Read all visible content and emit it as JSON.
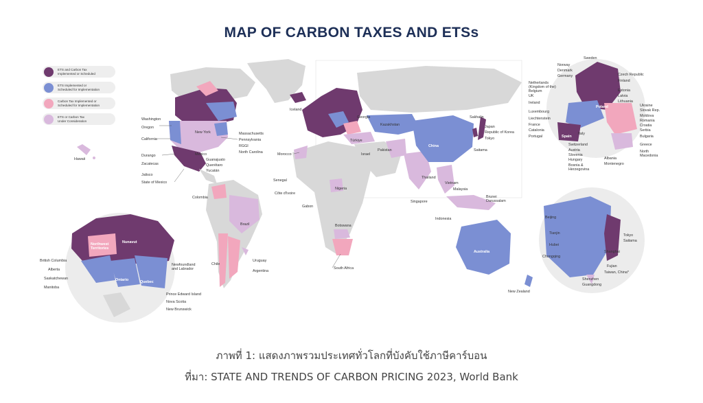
{
  "title": "MAP OF CARBON TAXES AND ETSs",
  "colors": {
    "ets_and_tax": "#6f3a6e",
    "ets": "#7b8fd3",
    "tax": "#f2a7bd",
    "under_consideration": "#d9b9dd",
    "none": "#d8d8d8"
  },
  "legend": [
    {
      "key": "ets_and_tax",
      "label": "ETS and Carbon Tax\nImplemented or Scheduled"
    },
    {
      "key": "ets",
      "label": "ETS Implemented or\nScheduled for Implementation"
    },
    {
      "key": "tax",
      "label": "Carbon Tax Implemented or\nScheduled for Implementation"
    },
    {
      "key": "under_consideration",
      "label": "ETS or Carbon Tax\nUnder Consideration"
    }
  ],
  "labels": {
    "hawaii": "Hawaii",
    "washington": "Washington",
    "oregon": "Oregon",
    "california": "California",
    "new_york": "New York",
    "massachusetts": "Massachusetts",
    "pennsylvania": "Pennsylvania",
    "rggi": "RGGI",
    "north_carolina": "North Carolina",
    "durango": "Durango",
    "zacatecas": "Zacatecas",
    "jalisco": "Jalisco",
    "state_of_mexico": "State of Mexico",
    "mexico": "Mexico",
    "guanajuato": "Guanajuato",
    "queretaro": "Querétaro",
    "yucatan": "Yucatán",
    "colombia": "Colombia",
    "brazil": "Brazil",
    "chile": "Chile",
    "uruguay": "Uruguay",
    "argentina": "Argentina",
    "iceland": "Iceland",
    "morocco": "Morocco",
    "senegal": "Senegal",
    "cote_divoire": "Côte d'Ivoire",
    "gabon": "Gabon",
    "nigeria": "Nigeria",
    "botswana": "Botswana",
    "south_africa": "South Africa",
    "georgia": "Georgia",
    "kazakhstan": "Kazakhstan",
    "turkiye": "Türkiye",
    "israel": "Israel",
    "pakistan": "Pakistan",
    "china": "China",
    "sakhalin": "Sakhalin",
    "japan": "Japan",
    "republic_of_korea": "Republic of Korea",
    "tokyo": "Tokyo",
    "saitama": "Saitama",
    "thailand": "Thailand",
    "vietnam": "Vietnam",
    "malaysia": "Malaysia",
    "singapore": "Singapore",
    "brunei": "Brunei\nDarussalam",
    "indonesia": "Indonesia",
    "australia": "Australia",
    "new_zealand": "New Zealand",
    "northwest_territories": "Northwest\nTerritories",
    "nunavut": "Nunavut",
    "british_columbia": "British Columbia",
    "alberta": "Alberta",
    "saskatchewan": "Saskatchewan",
    "manitoba": "Manitoba",
    "ontario": "Ontario",
    "quebec": "Quebec",
    "newfoundland": "Newfoundland\nand Labrador",
    "prince_edward_island": "Prince Edward Island",
    "nova_scotia": "Nova Scotia",
    "new_brunswick": "New Brunswick",
    "beijing": "Beijing",
    "tianjin": "Tianjin",
    "hubei": "Hubei",
    "chongqing": "Chongqing",
    "shanghai": "Shanghai",
    "fujian": "Fujian",
    "taiwan": "Taiwan, China*",
    "shenzhen": "Shenzhen",
    "guangdong": "Guangdong",
    "tokyo_inset": "Tokyo",
    "saitama_inset": "Saitama",
    "sweden": "Sweden",
    "norway": "Norway",
    "denmark": "Denmark",
    "germany": "Germany",
    "netherlands": "Netherlands\n(Kingdom of the)",
    "belgium": "Belgium",
    "uk": "UK",
    "ireland": "Ireland",
    "luxembourg": "Luxembourg",
    "liechtenstein": "Liechtenstein",
    "france": "France",
    "catalonia": "Catalonia",
    "portugal": "Portugal",
    "spain": "Spain",
    "switzerland": "Switzerland",
    "italy": "Italy",
    "austria": "Austria",
    "slovenia": "Slovenia",
    "hungary": "Hungary",
    "bosnia": "Bosnia &\nHerzegovina",
    "albania": "Albania",
    "montenegro": "Montenegro",
    "czech": "Czech Republic",
    "finland": "Finland",
    "estonia": "Estonia",
    "latvia": "Latvia",
    "lithuania": "Lithuania",
    "poland": "Poland",
    "ukraine": "Ukraine",
    "slovak": "Slovak Rep.",
    "moldova": "Moldova",
    "romania": "Romania",
    "croatia": "Croatia",
    "serbia": "Serbia",
    "bulgaria": "Bulgaria",
    "greece": "Greece",
    "north_macedonia": "North\nMacedonia"
  },
  "caption": {
    "line1": "ภาพที่ 1: แสดงภาพรวมประเทศทั่วโลกที่บังคับใช้ภาษีคาร์บอน",
    "line2": "ที่มา: STATE AND TRENDS OF CARBON PRICING 2023, World Bank"
  }
}
